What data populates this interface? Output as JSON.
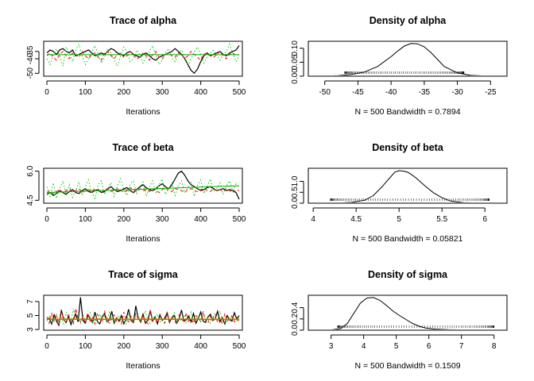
{
  "chart_data": [
    {
      "type": "line",
      "title": "Trace of alpha",
      "xlabel": "Iterations",
      "ylabel": "",
      "xlim": [
        0,
        500
      ],
      "ylim": [
        -52,
        -28
      ],
      "x_ticks": [
        0,
        100,
        200,
        300,
        400,
        500
      ],
      "y_ticks": [
        -50,
        -40,
        -35
      ],
      "y_tick_labels": [
        "-50",
        "-40",
        "-35"
      ],
      "series": [
        {
          "color": "#000000",
          "style": "solid",
          "values": [
            -36,
            -34,
            -35,
            -37,
            -34,
            -33,
            -35,
            -36,
            -34,
            -38,
            -37,
            -36,
            -35,
            -34,
            -36,
            -38,
            -37,
            -36,
            -37,
            -35,
            -33,
            -34,
            -36,
            -37,
            -38,
            -36,
            -35,
            -37,
            -38,
            -39,
            -37,
            -36,
            -38,
            -40,
            -41,
            -39,
            -38,
            -37,
            -36,
            -35,
            -33,
            -35,
            -37,
            -40,
            -44,
            -48,
            -50,
            -47,
            -42,
            -38,
            -36,
            -38,
            -37,
            -36,
            -35,
            -37,
            -38,
            -36,
            -35,
            -34,
            -31
          ]
        },
        {
          "color": "#ff0000",
          "style": "dashed",
          "values": [
            -38,
            -36,
            -39,
            -41,
            -37,
            -35,
            -38,
            -40,
            -36,
            -37,
            -39,
            -35,
            -38,
            -40,
            -37,
            -36,
            -39,
            -41,
            -36,
            -35,
            -38,
            -40,
            -37,
            -36,
            -39,
            -38,
            -35,
            -37,
            -40,
            -39,
            -36,
            -38,
            -41,
            -37,
            -35,
            -39,
            -40,
            -37,
            -36,
            -38,
            -39,
            -36,
            -37,
            -40,
            -38,
            -35,
            -37,
            -39,
            -41,
            -37,
            -36,
            -38,
            -39,
            -37,
            -35,
            -38,
            -40,
            -37,
            -36,
            -38,
            -37
          ]
        },
        {
          "color": "#00cc00",
          "style": "dotted",
          "values": [
            -40,
            -44,
            -37,
            -33,
            -38,
            -45,
            -32,
            -36,
            -42,
            -34,
            -30,
            -38,
            -44,
            -40,
            -35,
            -31,
            -37,
            -43,
            -39,
            -33,
            -36,
            -41,
            -45,
            -38,
            -32,
            -35,
            -42,
            -40,
            -34,
            -37,
            -43,
            -39,
            -35,
            -31,
            -38,
            -44,
            -41,
            -36,
            -33,
            -39,
            -42,
            -37,
            -34,
            -38,
            -45,
            -40,
            -35,
            -32,
            -37,
            -43,
            -39,
            -36,
            -34,
            -38,
            -41,
            -37,
            -35,
            -30,
            -36,
            -42,
            -38
          ]
        },
        {
          "color": "#00aa00",
          "style": "solid",
          "values": [
            -37.2,
            -37.2
          ]
        }
      ]
    },
    {
      "type": "area",
      "title": "Density of alpha",
      "xlabel": "N = 500   Bandwidth = 0.7894",
      "ylabel": "",
      "xlim": [
        -52,
        -23
      ],
      "ylim": [
        0,
        0.125
      ],
      "x_ticks": [
        -50,
        -45,
        -40,
        -35,
        -30,
        -25
      ],
      "y_ticks": [
        0.0,
        0.05,
        0.1
      ],
      "y_tick_labels": [
        "0.00",
        "0.05",
        "0.10"
      ],
      "density": {
        "x": [
          -51,
          -48,
          -46,
          -44,
          -42,
          -40,
          -39,
          -38,
          -37,
          -36,
          -35,
          -34,
          -33,
          -32,
          -30,
          -28,
          -26,
          -24
        ],
        "y": [
          0,
          0.002,
          0.006,
          0.015,
          0.035,
          0.07,
          0.09,
          0.108,
          0.117,
          0.116,
          0.105,
          0.085,
          0.06,
          0.035,
          0.012,
          0.003,
          0.001,
          0
        ]
      },
      "rug": {
        "from": -47,
        "to": -29
      }
    },
    {
      "type": "line",
      "title": "Trace of beta",
      "xlabel": "Iterations",
      "ylabel": "",
      "xlim": [
        0,
        500
      ],
      "ylim": [
        4.35,
        6.15
      ],
      "x_ticks": [
        0,
        100,
        200,
        300,
        400,
        500
      ],
      "y_ticks": [
        4.5,
        6.0
      ],
      "y_tick_labels": [
        "4.5",
        "6.0"
      ],
      "series": [
        {
          "color": "#000000",
          "style": "solid",
          "values": [
            4.8,
            4.9,
            4.75,
            4.85,
            5.0,
            4.9,
            4.8,
            4.95,
            5.05,
            4.9,
            4.85,
            5.0,
            5.1,
            4.95,
            4.9,
            5.0,
            5.05,
            4.9,
            4.95,
            5.1,
            5.2,
            5.05,
            4.95,
            5.0,
            5.1,
            5.15,
            5.0,
            4.9,
            5.05,
            5.2,
            5.3,
            5.15,
            5.05,
            5.0,
            5.1,
            5.25,
            5.35,
            5.2,
            5.1,
            5.3,
            5.6,
            5.9,
            6.0,
            5.8,
            5.5,
            5.3,
            5.2,
            5.1,
            5.0,
            5.05,
            5.15,
            5.2,
            5.1,
            5.0,
            5.05,
            5.1,
            5.0,
            5.05,
            5.0,
            4.9,
            4.55
          ]
        },
        {
          "color": "#ff0000",
          "style": "dashed",
          "values": [
            4.9,
            5.0,
            4.85,
            4.95,
            5.05,
            4.9,
            5.0,
            5.1,
            4.95,
            5.0,
            5.1,
            4.9,
            5.0,
            5.05,
            4.95,
            5.1,
            5.0,
            4.9,
            5.05,
            5.1,
            4.95,
            5.0,
            5.1,
            5.05,
            4.9,
            5.0,
            5.15,
            5.05,
            4.95,
            5.1,
            5.0,
            5.05,
            4.95,
            5.1,
            5.0,
            4.9,
            5.05,
            5.15,
            5.0,
            4.95,
            5.1,
            5.05,
            5.0,
            4.9,
            5.05,
            5.1,
            5.0,
            4.95,
            5.05,
            5.1,
            5.0,
            4.95,
            5.1,
            5.0,
            5.05,
            4.95,
            5.1,
            5.0,
            4.9,
            5.05,
            5.0
          ]
        },
        {
          "color": "#00cc00",
          "style": "dotted",
          "values": [
            5.2,
            4.7,
            5.4,
            4.6,
            5.1,
            5.5,
            4.8,
            5.3,
            4.65,
            5.0,
            5.45,
            4.75,
            5.2,
            5.55,
            4.9,
            4.6,
            5.3,
            5.5,
            4.8,
            5.1,
            5.4,
            4.7,
            5.25,
            5.6,
            5.0,
            4.75,
            5.35,
            5.5,
            4.85,
            5.15,
            5.45,
            4.7,
            5.2,
            5.5,
            4.9,
            5.3,
            5.6,
            4.8,
            5.1,
            5.4,
            4.75,
            5.25,
            5.5,
            4.9,
            5.15,
            5.45,
            4.7,
            5.3,
            5.55,
            4.85,
            5.2,
            5.6,
            4.95,
            5.1,
            5.4,
            4.8,
            5.25,
            5.5,
            5.0,
            5.35,
            5.2
          ]
        },
        {
          "color": "#00aa00",
          "style": "solid",
          "values": [
            4.9,
            5.25
          ]
        }
      ]
    },
    {
      "type": "area",
      "title": "Density of beta",
      "xlabel": "N = 500   Bandwidth = 0.05821",
      "ylabel": "",
      "xlim": [
        3.98,
        6.22
      ],
      "ylim": [
        0,
        1.6
      ],
      "x_ticks": [
        4.0,
        4.5,
        5.0,
        5.5,
        6.0
      ],
      "y_ticks": [
        0.0,
        0.5,
        1.0
      ],
      "y_tick_labels": [
        "0.0",
        "0.5",
        "1.0"
      ],
      "density": {
        "x": [
          4.1,
          4.3,
          4.45,
          4.6,
          4.7,
          4.8,
          4.9,
          4.95,
          5.0,
          5.05,
          5.1,
          5.15,
          5.2,
          5.3,
          5.4,
          5.5,
          5.6,
          5.75,
          5.9,
          6.1
        ],
        "y": [
          0,
          0.01,
          0.04,
          0.14,
          0.35,
          0.75,
          1.2,
          1.42,
          1.49,
          1.47,
          1.42,
          1.3,
          1.15,
          0.8,
          0.48,
          0.25,
          0.1,
          0.03,
          0.01,
          0
        ]
      },
      "rug": {
        "from": 4.2,
        "to": 6.05
      }
    },
    {
      "type": "line",
      "title": "Trace of sigma",
      "xlabel": "Iterations",
      "ylabel": "",
      "xlim": [
        0,
        500
      ],
      "ylim": [
        2.9,
        7.9
      ],
      "x_ticks": [
        0,
        100,
        200,
        300,
        400,
        500
      ],
      "y_ticks": [
        3,
        5,
        7
      ],
      "y_tick_labels": [
        "3",
        "5",
        "7"
      ],
      "series": [
        {
          "color": "#000000",
          "style": "solid",
          "values": [
            4.4,
            4.6,
            3.8,
            5.1,
            4.2,
            3.6,
            5.8,
            4.4,
            4.0,
            4.9,
            3.7,
            4.5,
            5.2,
            4.1,
            7.6,
            4.3,
            3.9,
            5.0,
            4.6,
            4.0,
            5.5,
            4.2,
            3.8,
            4.8,
            5.3,
            4.1,
            4.4,
            5.6,
            3.9,
            4.7,
            4.2,
            5.0,
            3.8,
            4.5,
            5.9,
            4.3,
            4.0,
            6.4,
            4.6,
            4.1,
            5.2,
            3.9,
            4.4,
            5.7,
            4.2,
            4.8,
            3.8,
            5.1,
            4.3,
            4.6,
            5.4,
            4.0,
            4.7,
            5.0,
            3.9,
            4.5,
            5.8,
            4.2,
            4.4,
            4.9,
            4.1,
            5.3,
            3.9,
            4.6,
            5.5,
            4.2,
            4.0,
            4.8,
            5.2,
            4.3,
            4.5,
            5.6,
            4.1,
            4.7,
            3.8,
            5.0,
            4.4,
            4.2,
            5.4,
            4.5,
            5.0
          ]
        },
        {
          "color": "#ff0000",
          "style": "dashed",
          "values": [
            4.8,
            3.9,
            5.3,
            4.2,
            4.9,
            3.7,
            5.6,
            4.4,
            4.0,
            5.1,
            4.3,
            3.8,
            6.0,
            4.5,
            4.1,
            4.9,
            3.9,
            5.4,
            4.2,
            4.7,
            3.8,
            5.2,
            4.6,
            4.0,
            5.7,
            4.3,
            3.9,
            4.8,
            5.1,
            4.2,
            4.5,
            3.8,
            5.5,
            4.4,
            4.1,
            4.9,
            3.9,
            5.3,
            4.6,
            4.0,
            5.0,
            4.3,
            3.8,
            5.8,
            4.2,
            4.7,
            4.0,
            5.2,
            4.4,
            3.9,
            5.5,
            4.1,
            4.8,
            4.3,
            3.8,
            5.1,
            4.6,
            4.0,
            5.4,
            4.2,
            4.5,
            3.9,
            5.0,
            4.7,
            4.1,
            5.6,
            4.3,
            3.9,
            4.9,
            4.4,
            5.2,
            4.0,
            4.6,
            3.8,
            5.3,
            4.2,
            4.5,
            4.9,
            4.1,
            4.4,
            4.3
          ]
        },
        {
          "color": "#00cc00",
          "style": "dotted",
          "values": [
            4.2,
            5.0,
            3.9,
            4.6,
            5.3,
            4.1,
            4.7,
            3.8,
            5.5,
            4.3,
            4.0,
            6.0,
            4.4,
            4.8,
            3.9,
            5.1,
            4.2,
            4.6,
            5.4,
            4.0,
            4.5,
            3.8,
            5.2,
            4.3,
            4.9,
            4.1,
            5.6,
            4.4,
            3.9,
            4.7,
            5.0,
            4.2,
            4.5,
            3.8,
            5.3,
            4.6,
            4.1,
            4.8,
            5.1,
            4.0,
            4.4,
            5.7,
            4.2,
            3.9,
            4.9,
            4.5,
            5.2,
            4.1,
            4.7,
            3.8,
            5.0,
            4.3,
            4.6,
            5.4,
            4.0,
            4.8,
            4.2,
            5.1,
            3.9,
            4.5,
            5.5,
            4.1,
            4.4,
            4.9,
            4.0,
            5.3,
            4.3,
            4.7,
            3.9,
            5.0,
            4.6,
            4.2,
            5.6,
            4.4,
            4.0,
            4.8,
            4.3,
            5.1,
            4.5,
            4.2,
            4.6
          ]
        },
        {
          "color": "#00aa00",
          "style": "solid",
          "values": [
            4.45,
            4.45
          ]
        },
        {
          "color": "#cc8800",
          "style": "solid",
          "values": [
            4.5,
            4.5
          ]
        }
      ]
    },
    {
      "type": "area",
      "title": "Density of sigma",
      "xlabel": "N = 500   Bandwidth = 0.1509",
      "ylabel": "",
      "xlim": [
        2.4,
        8.3
      ],
      "ylim": [
        0,
        0.62
      ],
      "x_ticks": [
        3,
        4,
        5,
        6,
        7,
        8
      ],
      "y_ticks": [
        0.0,
        0.2,
        0.4
      ],
      "y_tick_labels": [
        "0.0",
        "0.2",
        "0.4"
      ],
      "density": {
        "x": [
          2.6,
          3.0,
          3.3,
          3.5,
          3.7,
          3.9,
          4.1,
          4.3,
          4.5,
          4.7,
          4.9,
          5.1,
          5.3,
          5.5,
          5.7,
          5.9,
          6.2,
          6.6,
          7.0,
          7.5,
          8.0
        ],
        "y": [
          0,
          0.005,
          0.03,
          0.12,
          0.3,
          0.48,
          0.57,
          0.58,
          0.53,
          0.44,
          0.34,
          0.26,
          0.19,
          0.12,
          0.07,
          0.04,
          0.02,
          0.01,
          0.005,
          0.003,
          0
        ]
      },
      "rug": {
        "from": 3.2,
        "to": 8.0
      }
    }
  ]
}
